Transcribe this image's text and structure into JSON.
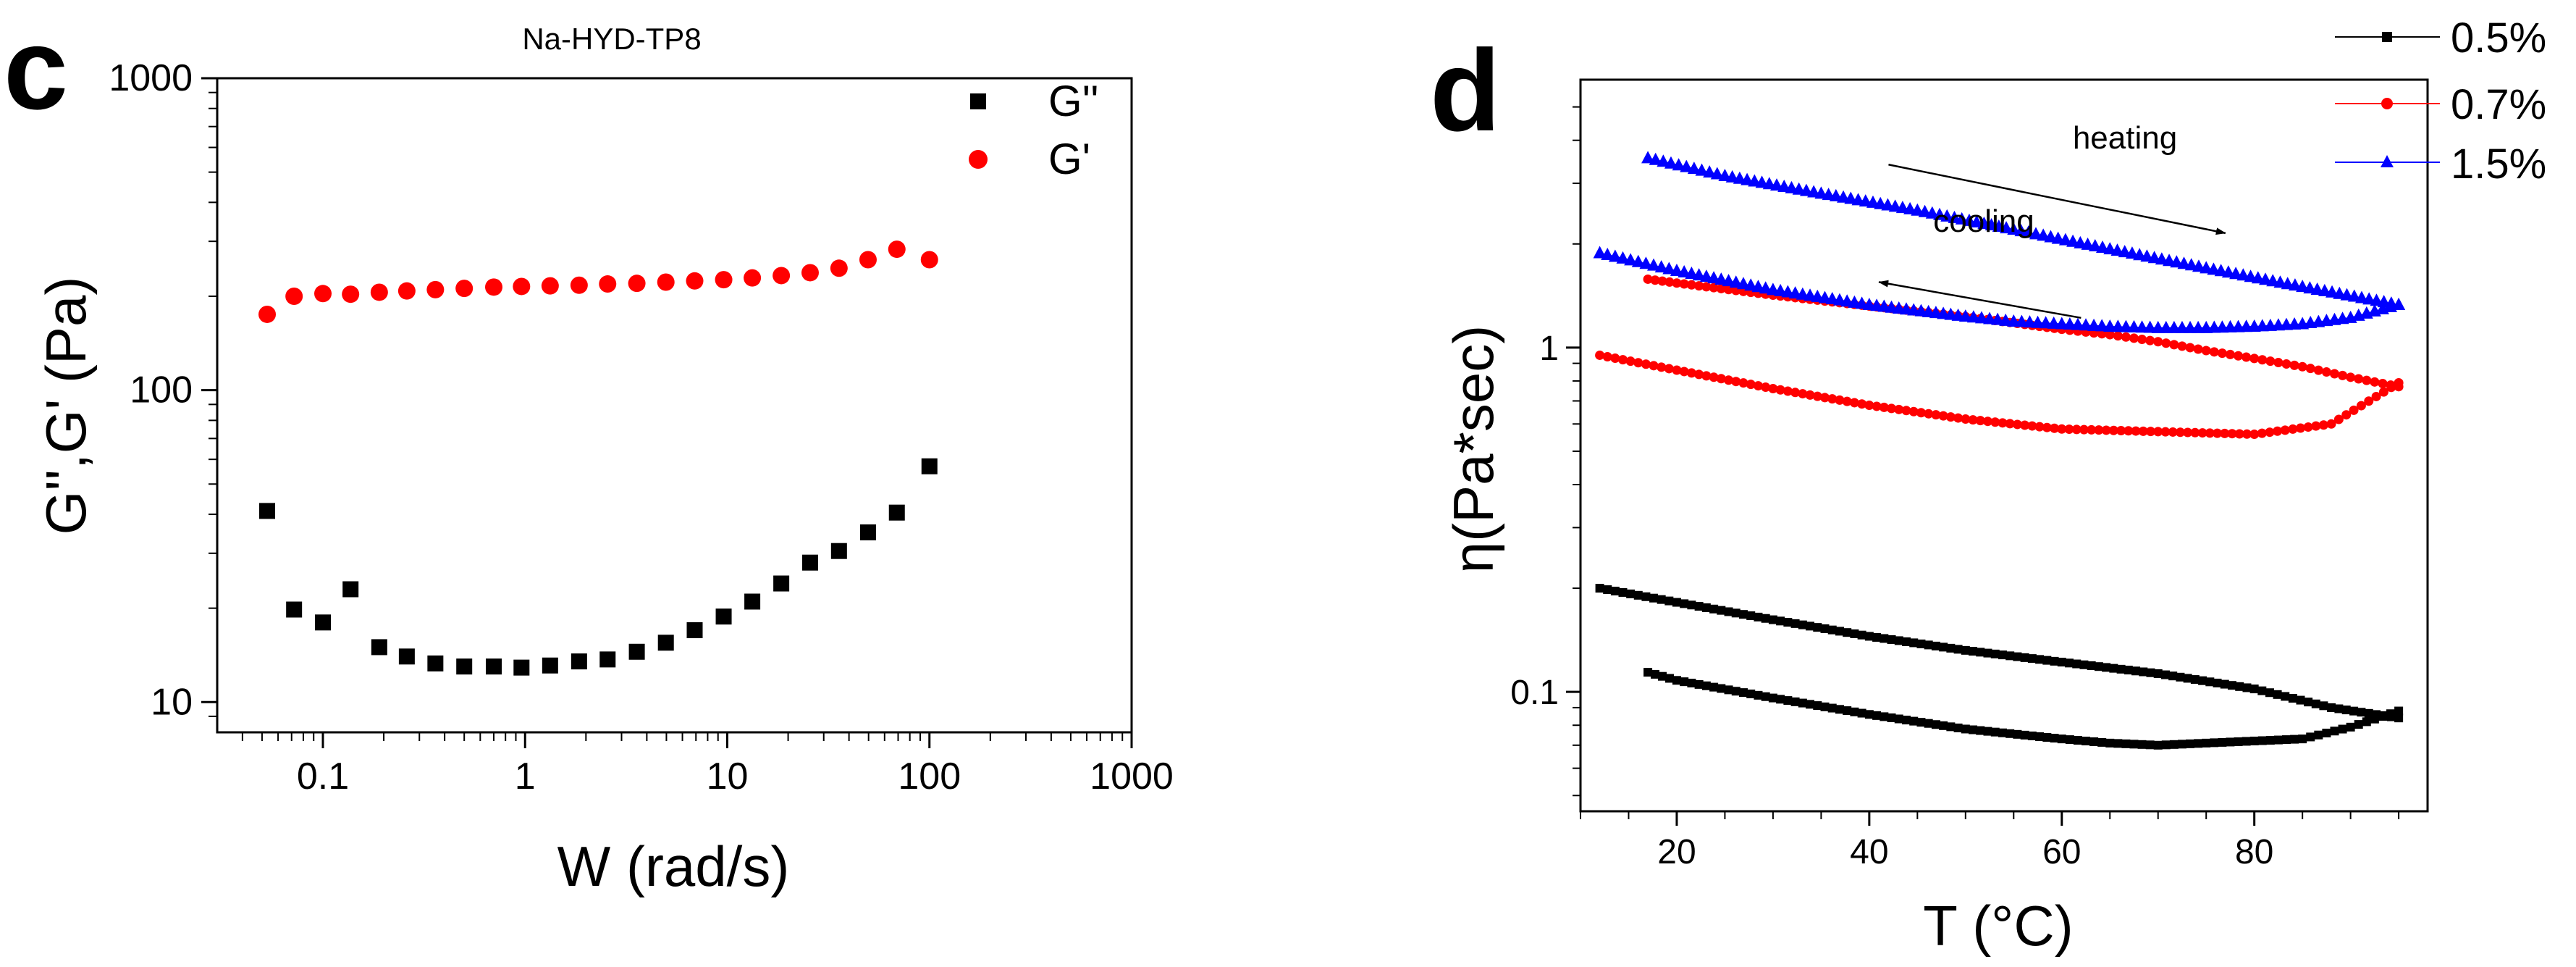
{
  "chart_data": [
    {
      "panel": "c",
      "type": "scatter",
      "title": "Na-HYD-TP8",
      "xlabel": "W (rad/s)",
      "ylabel": "G'',G' (Pa)",
      "xscale": "log",
      "yscale": "log",
      "xlim": [
        0.03,
        1000
      ],
      "ylim": [
        8,
        1000
      ],
      "grid": false,
      "legend_position": "top-right",
      "x_ticks": [
        0.1,
        1,
        10,
        100,
        1000
      ],
      "x_tick_labels": [
        "0.1",
        "1",
        "10",
        "100",
        "1000"
      ],
      "y_ticks": [
        10,
        100,
        1000
      ],
      "y_tick_labels": [
        "10",
        "100",
        "1000"
      ],
      "series": [
        {
          "name": "G''",
          "marker": "square",
          "color": "#000000",
          "x": [
            0.053,
            0.072,
            0.1,
            0.137,
            0.19,
            0.26,
            0.36,
            0.5,
            0.7,
            0.96,
            1.33,
            1.85,
            2.56,
            3.57,
            4.97,
            6.9,
            9.6,
            13.3,
            18.5,
            25.7,
            35.7,
            49.7,
            69,
            100
          ],
          "y": [
            41,
            19.8,
            18,
            23,
            15,
            14,
            13.3,
            13,
            13,
            12.9,
            13.1,
            13.5,
            13.7,
            14.5,
            15.5,
            17,
            18.8,
            21,
            24,
            28,
            30.5,
            35,
            40.5,
            57
          ]
        },
        {
          "name": "G'",
          "marker": "circle",
          "color": "#ff0000",
          "x": [
            0.053,
            0.072,
            0.1,
            0.137,
            0.19,
            0.26,
            0.36,
            0.5,
            0.7,
            0.96,
            1.33,
            1.85,
            2.56,
            3.57,
            4.97,
            6.9,
            9.6,
            13.3,
            18.5,
            25.7,
            35.7,
            49.7,
            69,
            100
          ],
          "y": [
            175,
            200,
            204,
            203,
            206,
            208,
            210,
            212,
            214,
            215,
            216,
            217,
            219,
            220,
            222,
            224,
            226,
            229,
            233,
            238,
            246,
            262,
            283,
            262
          ]
        }
      ]
    },
    {
      "panel": "d",
      "type": "line",
      "xlabel": "T (°C)",
      "ylabel": "η(Pa*sec)",
      "xscale": "linear",
      "yscale": "log",
      "xlim": [
        10,
        98
      ],
      "ylim": [
        0.045,
        6
      ],
      "grid": false,
      "legend_position": "top-right",
      "x_ticks": [
        20,
        40,
        60,
        80
      ],
      "x_tick_labels": [
        "20",
        "40",
        "60",
        "80"
      ],
      "y_ticks": [
        0.1,
        1
      ],
      "y_tick_labels": [
        "0.1",
        "1"
      ],
      "annotations": [
        {
          "text": "heating",
          "arrow_from": [
            42,
            3.4
          ],
          "arrow_to": [
            77,
            2.15
          ]
        },
        {
          "text": "cooling",
          "arrow_from": [
            62,
            1.22
          ],
          "arrow_to": [
            41,
            1.55
          ]
        }
      ],
      "series": [
        {
          "name": "0.5%",
          "color": "#000000",
          "marker": "square",
          "heating": {
            "x": [
              12,
              20,
              30,
              40,
              50,
              60,
              70,
              80,
              88,
              95
            ],
            "y": [
              0.2,
              0.182,
              0.162,
              0.145,
              0.132,
              0.122,
              0.113,
              0.102,
              0.09,
              0.084
            ]
          },
          "cooling": {
            "x": [
              95,
              90,
              85,
              80,
              75,
              70,
              65,
              60,
              50,
              40,
              30,
              20,
              17
            ],
            "y": [
              0.088,
              0.079,
              0.073,
              0.072,
              0.071,
              0.07,
              0.071,
              0.073,
              0.078,
              0.086,
              0.096,
              0.108,
              0.114
            ]
          }
        },
        {
          "name": "0.7%",
          "color": "#ff0000",
          "marker": "circle",
          "heating": {
            "x": [
              12,
              20,
              30,
              40,
              50,
              60,
              70,
              80,
              88,
              95
            ],
            "y": [
              0.95,
              0.86,
              0.76,
              0.68,
              0.62,
              0.58,
              0.57,
              0.56,
              0.6,
              0.79
            ]
          },
          "cooling": {
            "x": [
              95,
              90,
              85,
              80,
              75,
              70,
              65,
              60,
              50,
              40,
              30,
              20,
              17
            ],
            "y": [
              0.77,
              0.82,
              0.88,
              0.93,
              0.98,
              1.04,
              1.09,
              1.13,
              1.23,
              1.32,
              1.42,
              1.54,
              1.58
            ]
          }
        },
        {
          "name": "1.5%",
          "color": "#0000ff",
          "marker": "triangle",
          "heating": {
            "x": [
              17,
              25,
              35,
              45,
              55,
              65,
              75,
              85,
              95
            ],
            "y": [
              3.55,
              3.15,
              2.8,
              2.5,
              2.2,
              1.93,
              1.7,
              1.5,
              1.33
            ]
          },
          "cooling": {
            "x": [
              95,
              90,
              85,
              80,
              75,
              70,
              65,
              60,
              55,
              50,
              40,
              30,
              20,
              12
            ],
            "y": [
              1.33,
              1.22,
              1.17,
              1.15,
              1.14,
              1.14,
              1.15,
              1.17,
              1.19,
              1.23,
              1.33,
              1.47,
              1.67,
              1.88
            ]
          }
        }
      ]
    }
  ]
}
